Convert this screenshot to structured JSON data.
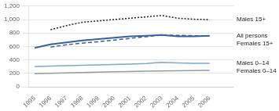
{
  "chart_data": {
    "type": "line",
    "x": [
      1995,
      1996,
      1997,
      1998,
      1999,
      2000,
      2001,
      2002,
      2003,
      2004,
      2005,
      2006
    ],
    "series": [
      {
        "name": "All persons",
        "color": "#3a5fa0",
        "line_style": "solid",
        "values": [
          580,
          630,
          660,
          690,
          710,
          730,
          750,
          760,
          770,
          750,
          750,
          760
        ]
      },
      {
        "name": "Males 15+",
        "color": "#222222",
        "line_style": "dotted",
        "values": [
          null,
          850,
          910,
          960,
          980,
          1000,
          1020,
          1040,
          1060,
          1020,
          1005,
          1000
        ]
      },
      {
        "name": "Females 15+",
        "color": "#3a5fa0",
        "line_style": "dashed",
        "values": [
          null,
          590,
          625,
          650,
          670,
          695,
          720,
          745,
          770,
          765,
          760,
          755
        ]
      },
      {
        "name": "Males 0–14",
        "color": "#7aaad0",
        "line_style": "solid",
        "values": [
          300,
          308,
          314,
          320,
          326,
          332,
          338,
          346,
          365,
          355,
          350,
          348
        ]
      },
      {
        "name": "Females 0–14",
        "color": "#999999",
        "line_style": "solid",
        "values": [
          195,
          200,
          207,
          214,
          220,
          225,
          228,
          232,
          236,
          240,
          243,
          245
        ]
      }
    ],
    "xlim": [
      1994.6,
      2007.5
    ],
    "xticks": [
      1995,
      1996,
      1997,
      1998,
      1999,
      2000,
      2001,
      2002,
      2003,
      2004,
      2005,
      2006
    ],
    "ylim": [
      0,
      1200
    ],
    "yticks": [
      0,
      200,
      400,
      600,
      800,
      {
        "value": 1000,
        "label": "1,000"
      },
      {
        "value": 1200,
        "label": "1,200"
      }
    ],
    "grid": "y"
  }
}
